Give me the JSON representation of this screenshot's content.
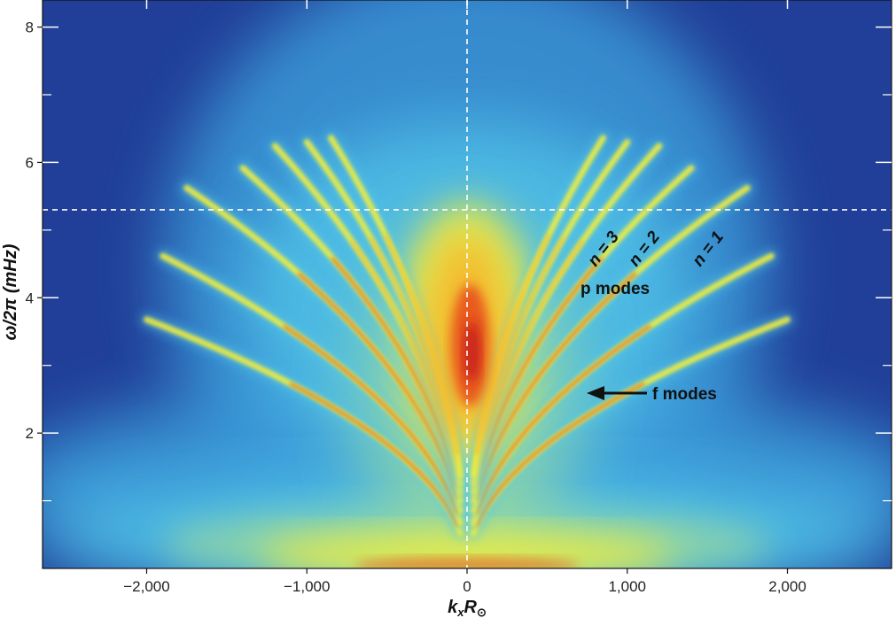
{
  "chart_data": {
    "type": "heatmap",
    "title": "",
    "xlabel": "k_x R_⊙",
    "xlabel_main": "k",
    "xlabel_sub": "x",
    "xlabel_R": "R",
    "xlabel_sun": "⊙",
    "ylabel": "ω/2π (mHz)",
    "ylabel_omega": "ω",
    "ylabel_rest": "/2π (mHz)",
    "xlim": [
      -2650,
      2650
    ],
    "ylim": [
      0,
      8.4
    ],
    "x_ticks": [
      -2000,
      -1000,
      0,
      1000,
      2000
    ],
    "x_tick_labels": [
      "−2,000",
      "−1,000",
      "0",
      "1,000",
      "2,000"
    ],
    "y_ticks": [
      2,
      4,
      6,
      8
    ],
    "y_tick_labels": [
      "2",
      "4",
      "6",
      "8"
    ],
    "y_minor_ticks": [
      1,
      3,
      5,
      7
    ],
    "reference_lines": {
      "vertical_x": 0,
      "horizontal_y": 5.3
    },
    "ridges": [
      {
        "name": "f",
        "k_end": 2000,
        "nu_at_k1000": 2.6
      },
      {
        "name": "n = 1",
        "k_end": 1900,
        "nu_at_k1000": 3.35
      },
      {
        "name": "n = 2",
        "k_end": 1750,
        "nu_at_k1000": 4.25
      },
      {
        "name": "n = 3",
        "k_end": 1400,
        "nu_at_k1000": 5.0
      },
      {
        "name": "n = 4",
        "k_end": 1200,
        "nu_at_k1000": 5.7
      },
      {
        "name": "n = 5",
        "k_end": 1000,
        "nu_at_k1000": 6.3
      },
      {
        "name": "n = 6",
        "k_end": 850,
        "nu_at_k1000": 6.9
      }
    ],
    "annotations": {
      "n3": "n = 3",
      "n2": "n = 2",
      "n1": "n = 1",
      "p_modes": "p modes",
      "f_modes": "f modes"
    },
    "colorscale": [
      "#1f3c96",
      "#2b60b8",
      "#3a9ad8",
      "#52c8ea",
      "#9edb9a",
      "#f4ee3a",
      "#f7b32b",
      "#e8501f",
      "#c41a1a"
    ]
  }
}
